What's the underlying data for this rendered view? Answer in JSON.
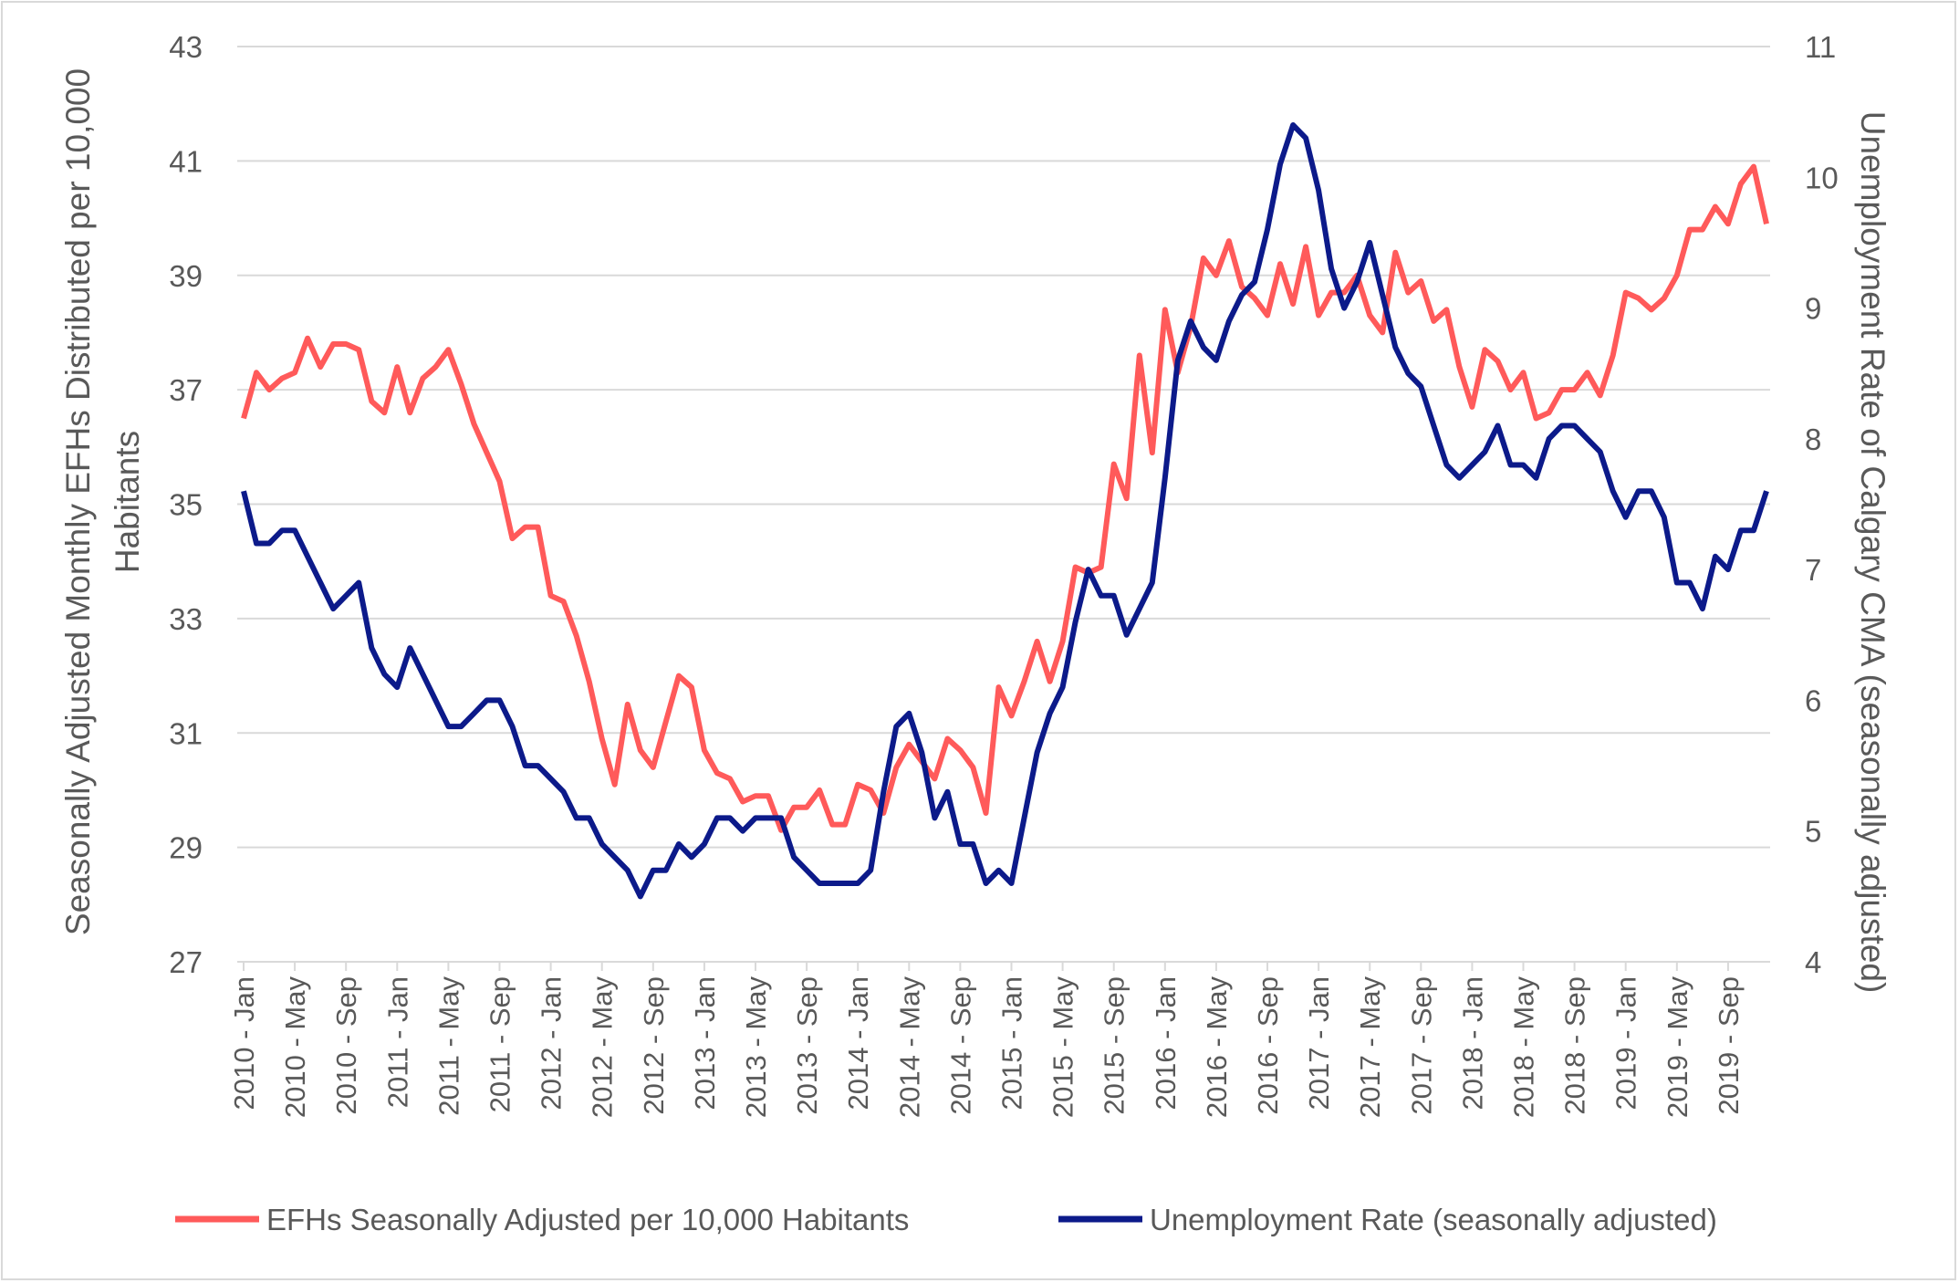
{
  "chart_data": {
    "type": "line",
    "title": "",
    "ylabel_left": "Seasonally  Adjusted Monthly EFHs Distributed per 10,000 Habitants",
    "ylabel_left_lines": [
      "Seasonally  Adjusted Monthly EFHs Distributed per 10,000",
      "Habitants"
    ],
    "ylabel_right": "Unemployment Rate of Calgary CMA (seasonally adjusted)",
    "ylim_left": [
      27,
      43
    ],
    "yticks_left": [
      27,
      29,
      31,
      33,
      35,
      37,
      39,
      41,
      43
    ],
    "ylim_right": [
      4,
      11
    ],
    "yticks_right": [
      4,
      5,
      6,
      7,
      8,
      9,
      10,
      11
    ],
    "grid": true,
    "legend_position": "bottom",
    "x_tick_labels": [
      "2010 - Jan",
      "2010 - May",
      "2010 - Sep",
      "2011 - Jan",
      "2011 - May",
      "2011 - Sep",
      "2012 - Jan",
      "2012 - May",
      "2012 - Sep",
      "2013 - Jan",
      "2013 - May",
      "2013 - Sep",
      "2014 - Jan",
      "2014 - May",
      "2014 - Sep",
      "2015 - Jan",
      "2015 - May",
      "2015 - Sep",
      "2016 - Jan",
      "2016 - May",
      "2016 - Sep",
      "2017 - Jan",
      "2017 - May",
      "2017 - Sep",
      "2018 - Jan",
      "2018 - May",
      "2018 - Sep",
      "2019 - Jan",
      "2019 - May",
      "2019 - Sep"
    ],
    "categories": [
      "2010 - Jan",
      "2010 - Feb",
      "2010 - Mar",
      "2010 - Apr",
      "2010 - May",
      "2010 - Jun",
      "2010 - Jul",
      "2010 - Aug",
      "2010 - Sep",
      "2010 - Oct",
      "2010 - Nov",
      "2010 - Dec",
      "2011 - Jan",
      "2011 - Feb",
      "2011 - Mar",
      "2011 - Apr",
      "2011 - May",
      "2011 - Jun",
      "2011 - Jul",
      "2011 - Aug",
      "2011 - Sep",
      "2011 - Oct",
      "2011 - Nov",
      "2011 - Dec",
      "2012 - Jan",
      "2012 - Feb",
      "2012 - Mar",
      "2012 - Apr",
      "2012 - May",
      "2012 - Jun",
      "2012 - Jul",
      "2012 - Aug",
      "2012 - Sep",
      "2012 - Oct",
      "2012 - Nov",
      "2012 - Dec",
      "2013 - Jan",
      "2013 - Feb",
      "2013 - Mar",
      "2013 - Apr",
      "2013 - May",
      "2013 - Jun",
      "2013 - Jul",
      "2013 - Aug",
      "2013 - Sep",
      "2013 - Oct",
      "2013 - Nov",
      "2013 - Dec",
      "2014 - Jan",
      "2014 - Feb",
      "2014 - Mar",
      "2014 - Apr",
      "2014 - May",
      "2014 - Jun",
      "2014 - Jul",
      "2014 - Aug",
      "2014 - Sep",
      "2014 - Oct",
      "2014 - Nov",
      "2014 - Dec",
      "2015 - Jan",
      "2015 - Feb",
      "2015 - Mar",
      "2015 - Apr",
      "2015 - May",
      "2015 - Jun",
      "2015 - Jul",
      "2015 - Aug",
      "2015 - Sep",
      "2015 - Oct",
      "2015 - Nov",
      "2015 - Dec",
      "2016 - Jan",
      "2016 - Feb",
      "2016 - Mar",
      "2016 - Apr",
      "2016 - May",
      "2016 - Jun",
      "2016 - Jul",
      "2016 - Aug",
      "2016 - Sep",
      "2016 - Oct",
      "2016 - Nov",
      "2016 - Dec",
      "2017 - Jan",
      "2017 - Feb",
      "2017 - Mar",
      "2017 - Apr",
      "2017 - May",
      "2017 - Jun",
      "2017 - Jul",
      "2017 - Aug",
      "2017 - Sep",
      "2017 - Oct",
      "2017 - Nov",
      "2017 - Dec",
      "2018 - Jan",
      "2018 - Feb",
      "2018 - Mar",
      "2018 - Apr",
      "2018 - May",
      "2018 - Jun",
      "2018 - Jul",
      "2018 - Aug",
      "2018 - Sep",
      "2018 - Oct",
      "2018 - Nov",
      "2018 - Dec",
      "2019 - Jan",
      "2019 - Feb",
      "2019 - Mar",
      "2019 - Apr",
      "2019 - May",
      "2019 - Jun",
      "2019 - Jul",
      "2019 - Aug",
      "2019 - Sep",
      "2019 - Oct",
      "2019 - Nov",
      "2019 - Dec"
    ],
    "series": [
      {
        "name": "EFHs Seasonally Adjusted per 10,000 Habitants",
        "axis": "left",
        "color": "#ff5a5a",
        "values": [
          36.5,
          37.3,
          37.0,
          37.2,
          37.3,
          37.9,
          37.4,
          37.8,
          37.8,
          37.7,
          36.8,
          36.6,
          37.4,
          36.6,
          37.2,
          37.4,
          37.7,
          37.1,
          36.4,
          35.9,
          35.4,
          34.4,
          34.6,
          34.6,
          33.4,
          33.3,
          32.7,
          31.9,
          30.9,
          30.1,
          31.5,
          30.7,
          30.4,
          31.2,
          32.0,
          31.8,
          30.7,
          30.3,
          30.2,
          29.8,
          29.9,
          29.9,
          29.3,
          29.7,
          29.7,
          30.0,
          29.4,
          29.4,
          30.1,
          30.0,
          29.6,
          30.4,
          30.8,
          30.5,
          30.2,
          30.9,
          30.7,
          30.4,
          29.6,
          31.8,
          31.3,
          31.9,
          32.6,
          31.9,
          32.6,
          33.9,
          33.8,
          33.9,
          35.7,
          35.1,
          37.6,
          35.9,
          38.4,
          37.3,
          38.1,
          39.3,
          39.0,
          39.6,
          38.8,
          38.6,
          38.3,
          39.2,
          38.5,
          39.5,
          38.3,
          38.7,
          38.7,
          39.0,
          38.3,
          38.0,
          39.4,
          38.7,
          38.9,
          38.2,
          38.4,
          37.4,
          36.7,
          37.7,
          37.5,
          37.0,
          37.3,
          36.5,
          36.6,
          37.0,
          37.0,
          37.3,
          36.9,
          37.6,
          38.7,
          38.6,
          38.4,
          38.6,
          39.0,
          39.8,
          39.8,
          40.2,
          39.9,
          40.6,
          40.9,
          39.9
        ]
      },
      {
        "name": "Unemployment Rate (seasonally adjusted)",
        "axis": "right",
        "color": "#0c1a8a",
        "values": [
          7.6,
          7.2,
          7.2,
          7.3,
          7.3,
          7.1,
          6.9,
          6.7,
          6.8,
          6.9,
          6.4,
          6.2,
          6.1,
          6.4,
          6.2,
          6.0,
          5.8,
          5.8,
          5.9,
          6.0,
          6.0,
          5.8,
          5.5,
          5.5,
          5.4,
          5.3,
          5.1,
          5.1,
          4.9,
          4.8,
          4.7,
          4.5,
          4.7,
          4.7,
          4.9,
          4.8,
          4.9,
          5.1,
          5.1,
          5.0,
          5.1,
          5.1,
          5.1,
          4.8,
          4.7,
          4.6,
          4.6,
          4.6,
          4.6,
          4.7,
          5.3,
          5.8,
          5.9,
          5.6,
          5.1,
          5.3,
          4.9,
          4.9,
          4.6,
          4.7,
          4.6,
          5.1,
          5.6,
          5.9,
          6.1,
          6.6,
          7.0,
          6.8,
          6.8,
          6.5,
          6.7,
          6.9,
          7.7,
          8.6,
          8.9,
          8.7,
          8.6,
          8.9,
          9.1,
          9.2,
          9.6,
          10.1,
          10.4,
          10.3,
          9.9,
          9.3,
          9.0,
          9.2,
          9.5,
          9.1,
          8.7,
          8.5,
          8.4,
          8.1,
          7.8,
          7.7,
          7.8,
          7.9,
          8.1,
          7.8,
          7.8,
          7.7,
          8.0,
          8.1,
          8.1,
          8.0,
          7.9,
          7.6,
          7.4,
          7.6,
          7.6,
          7.4,
          6.9,
          6.9,
          6.7,
          7.1,
          7.0,
          7.3,
          7.3,
          7.6
        ]
      }
    ]
  }
}
